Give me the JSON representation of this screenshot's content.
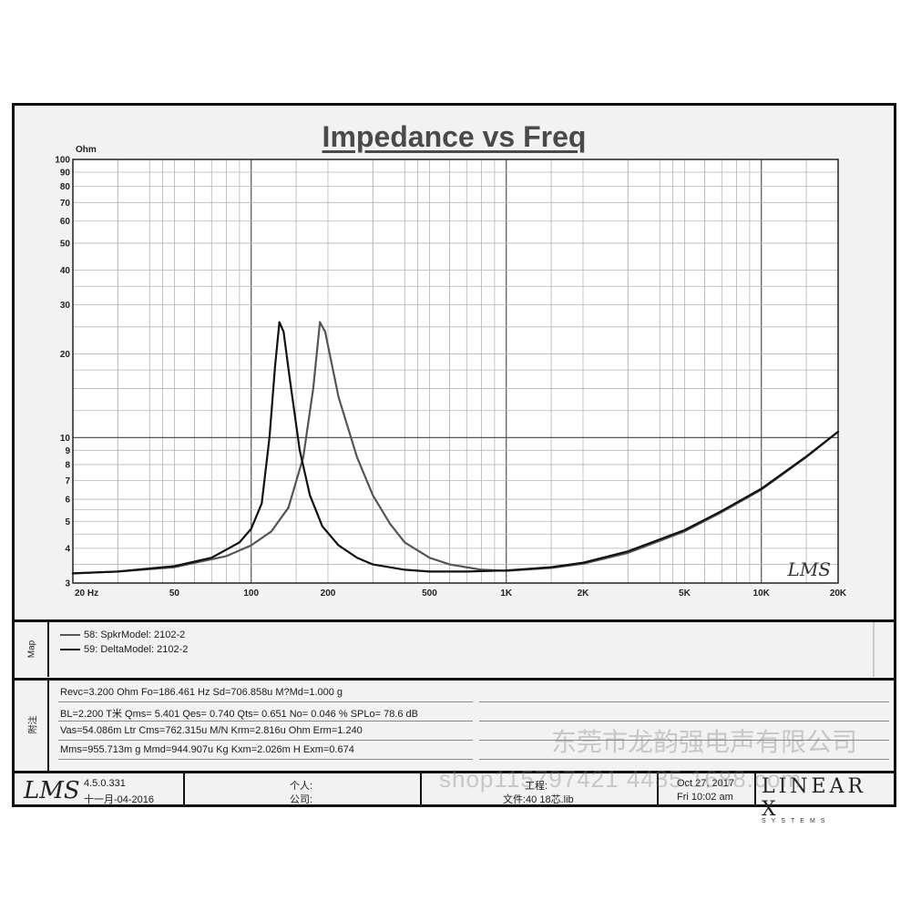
{
  "chart_data": {
    "type": "line",
    "title": "Impedance vs Freq",
    "ylabel": "Ohm",
    "x_scale": "log",
    "y_scale": "log",
    "xlim": [
      20,
      20000
    ],
    "ylim": [
      3,
      100
    ],
    "grid": true,
    "x_ticks": [
      {
        "value": 20,
        "label": "20  Hz"
      },
      {
        "value": 50,
        "label": "50"
      },
      {
        "value": 100,
        "label": "100"
      },
      {
        "value": 200,
        "label": "200"
      },
      {
        "value": 500,
        "label": "500"
      },
      {
        "value": 1000,
        "label": "1K"
      },
      {
        "value": 2000,
        "label": "2K"
      },
      {
        "value": 5000,
        "label": "5K"
      },
      {
        "value": 10000,
        "label": "10K"
      },
      {
        "value": 20000,
        "label": "20K"
      }
    ],
    "y_ticks": [
      {
        "value": 100,
        "label": "100"
      },
      {
        "value": 90,
        "label": "90"
      },
      {
        "value": 80,
        "label": "80"
      },
      {
        "value": 70,
        "label": "70"
      },
      {
        "value": 60,
        "label": "60"
      },
      {
        "value": 50,
        "label": "50"
      },
      {
        "value": 40,
        "label": "40"
      },
      {
        "value": 30,
        "label": "30"
      },
      {
        "value": 20,
        "label": "20"
      },
      {
        "value": 10,
        "label": "10"
      },
      {
        "value": 9,
        "label": "9"
      },
      {
        "value": 8,
        "label": "8"
      },
      {
        "value": 7,
        "label": "7"
      },
      {
        "value": 6,
        "label": "6"
      },
      {
        "value": 5,
        "label": "5"
      },
      {
        "value": 4,
        "label": "4"
      },
      {
        "value": 3,
        "label": "3"
      }
    ],
    "series": [
      {
        "name": "58: SpkrModel: 2102-2",
        "color": "#555555",
        "points": [
          [
            20,
            3.25
          ],
          [
            30,
            3.3
          ],
          [
            50,
            3.42
          ],
          [
            80,
            3.75
          ],
          [
            100,
            4.1
          ],
          [
            120,
            4.6
          ],
          [
            140,
            5.6
          ],
          [
            160,
            8.5
          ],
          [
            175,
            15
          ],
          [
            186,
            26
          ],
          [
            195,
            24
          ],
          [
            220,
            14
          ],
          [
            260,
            8.5
          ],
          [
            300,
            6.2
          ],
          [
            350,
            4.9
          ],
          [
            400,
            4.2
          ],
          [
            500,
            3.7
          ],
          [
            600,
            3.5
          ],
          [
            800,
            3.35
          ],
          [
            1000,
            3.32
          ],
          [
            1500,
            3.4
          ],
          [
            2000,
            3.52
          ],
          [
            3000,
            3.85
          ],
          [
            5000,
            4.6
          ],
          [
            7000,
            5.4
          ],
          [
            10000,
            6.5
          ],
          [
            15000,
            8.5
          ],
          [
            20000,
            10.5
          ]
        ]
      },
      {
        "name": "59: DeltaModel: 2102-2",
        "color": "#111111",
        "points": [
          [
            20,
            3.25
          ],
          [
            30,
            3.3
          ],
          [
            50,
            3.45
          ],
          [
            70,
            3.7
          ],
          [
            90,
            4.2
          ],
          [
            100,
            4.7
          ],
          [
            110,
            5.8
          ],
          [
            118,
            10
          ],
          [
            124,
            18
          ],
          [
            129,
            26
          ],
          [
            134,
            24
          ],
          [
            142,
            16
          ],
          [
            155,
            9
          ],
          [
            170,
            6.2
          ],
          [
            190,
            4.8
          ],
          [
            220,
            4.1
          ],
          [
            260,
            3.7
          ],
          [
            300,
            3.5
          ],
          [
            400,
            3.35
          ],
          [
            500,
            3.3
          ],
          [
            700,
            3.3
          ],
          [
            1000,
            3.33
          ],
          [
            1500,
            3.42
          ],
          [
            2000,
            3.55
          ],
          [
            3000,
            3.9
          ],
          [
            5000,
            4.65
          ],
          [
            7000,
            5.45
          ],
          [
            10000,
            6.55
          ],
          [
            15000,
            8.55
          ],
          [
            20000,
            10.5
          ]
        ]
      }
    ]
  },
  "map_panel": {
    "label": "Map",
    "items": [
      "58: SpkrModel: 2102-2",
      "59: DeltaModel: 2102-2"
    ]
  },
  "params_panel": {
    "label": "附注",
    "rows": [
      "Revc=3.200 Ohm  Fo=186.461 Hz  Sd=706.858u M?Md=1.000 g",
      "BL=2.200 T米  Qms= 5.401  Qes= 0.740  Qts= 0.651  No= 0.046 %  SPLo= 78.6 dB",
      "Vas=54.086m Ltr  Cms=762.315u M/N  Krm=2.816u Ohm  Erm=1.240",
      "Mms=955.713m g  Mmd=944.907u Kg  Kxm=2.026m H  Exm=0.674"
    ]
  },
  "footer": {
    "lms_logo": "LMS",
    "version": "4.5.0.331",
    "build_date": "十一月-04-2016",
    "person_label": "个人:",
    "company_label": "公司:",
    "project_label": "工程:",
    "file_label": "文件:40 18芯.lib",
    "date": "Oct 27, 2017",
    "time": "Fri 10:02 am",
    "brand_word": "LINEAR X",
    "brand_sub": "SYSTEMS"
  },
  "plot_logo": "LMS",
  "watermark_lines": [
    "东莞市龙韵强电声有限公司",
    "shop115797421 4485.1688.com"
  ]
}
